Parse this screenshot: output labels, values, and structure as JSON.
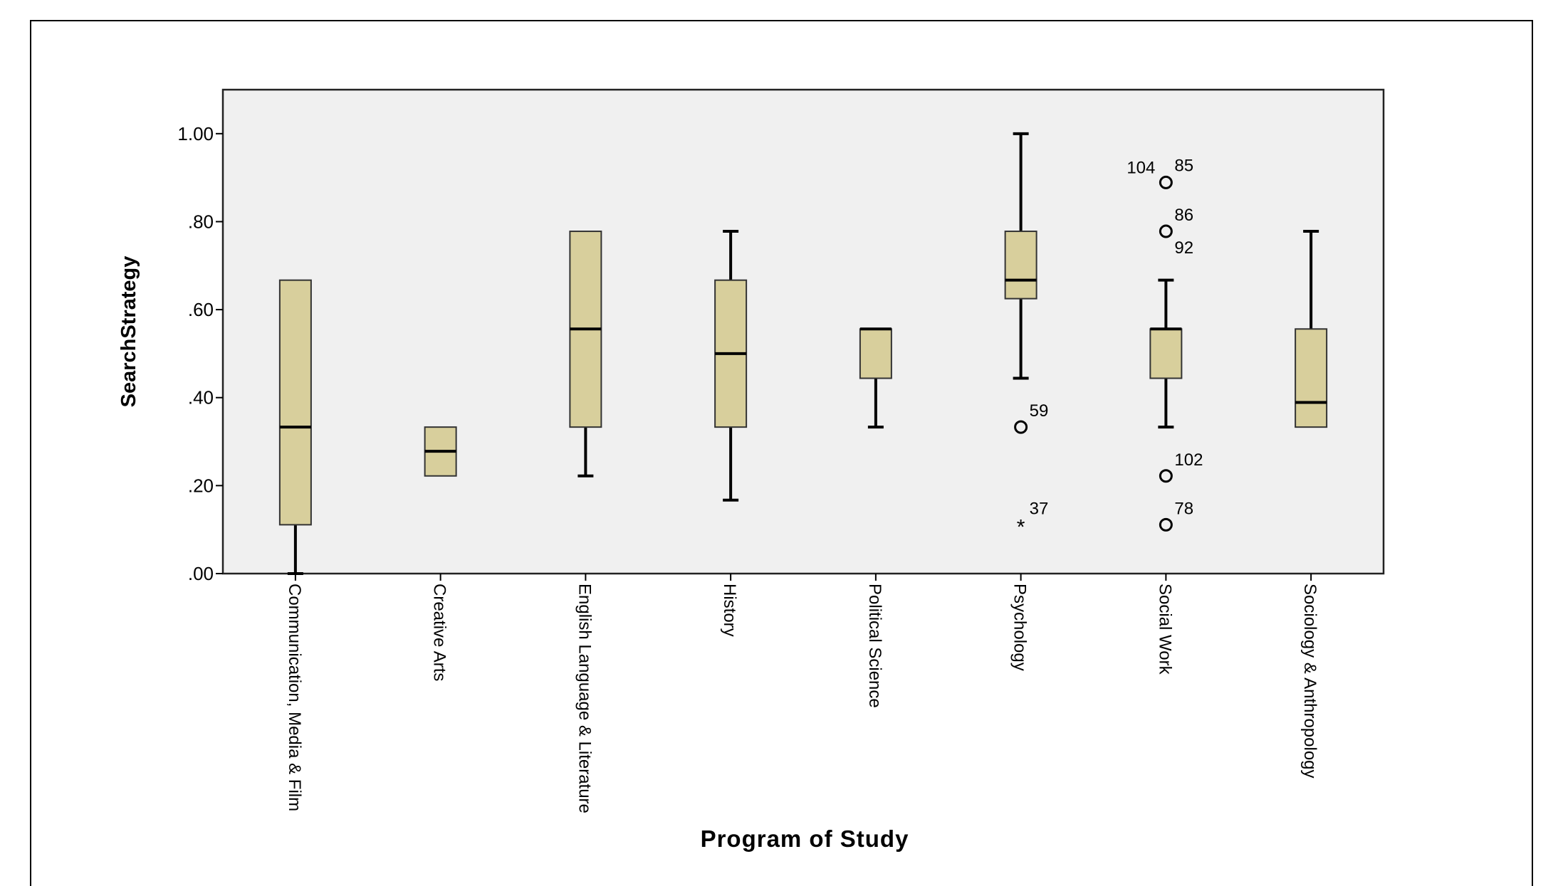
{
  "chart_data": {
    "type": "boxplot",
    "title": "",
    "xlabel": "Program of Study",
    "ylabel": "SearchStrategy",
    "ylim": [
      0,
      1.1
    ],
    "yticks": [
      0,
      0.2,
      0.4,
      0.6,
      0.8,
      1.0
    ],
    "ytick_labels": [
      ".00",
      ".20",
      ".40",
      ".60",
      ".80",
      "1.00"
    ],
    "grid": false,
    "colors": {
      "box_fill": "#d8cf9c",
      "plot_bg": "#f0f0f0",
      "line": "#000000"
    },
    "categories": [
      "Communication, Media & Film",
      "Creative Arts",
      "English Language & Literature",
      "History",
      "Political Science",
      "Psychology",
      "Social Work",
      "Sociology & Anthropology"
    ],
    "boxes": [
      {
        "whisker_low": 0.0,
        "q1": 0.111,
        "median": 0.333,
        "q3": 0.667,
        "whisker_high": 0.667
      },
      {
        "whisker_low": 0.222,
        "q1": 0.222,
        "median": 0.278,
        "q3": 0.333,
        "whisker_high": 0.333
      },
      {
        "whisker_low": 0.222,
        "q1": 0.333,
        "median": 0.556,
        "q3": 0.778,
        "whisker_high": 0.778
      },
      {
        "whisker_low": 0.167,
        "q1": 0.333,
        "median": 0.5,
        "q3": 0.667,
        "whisker_high": 0.778
      },
      {
        "whisker_low": 0.333,
        "q1": 0.444,
        "median": 0.556,
        "q3": 0.556,
        "whisker_high": 0.556
      },
      {
        "whisker_low": 0.444,
        "q1": 0.625,
        "median": 0.667,
        "q3": 0.778,
        "whisker_high": 1.0
      },
      {
        "whisker_low": 0.333,
        "q1": 0.444,
        "median": 0.556,
        "q3": 0.556,
        "whisker_high": 0.667
      },
      {
        "whisker_low": 0.333,
        "q1": 0.333,
        "median": 0.389,
        "q3": 0.556,
        "whisker_high": 0.778
      }
    ],
    "outliers": [
      {
        "category": 5,
        "value": 0.333,
        "marker": "circle",
        "labels": [
          "59"
        ]
      },
      {
        "category": 5,
        "value": 0.111,
        "marker": "star",
        "labels": [
          "37"
        ]
      },
      {
        "category": 6,
        "value": 0.889,
        "marker": "circle",
        "labels": [
          "104",
          "85"
        ]
      },
      {
        "category": 6,
        "value": 0.778,
        "marker": "circle",
        "labels": [
          "86",
          "92"
        ]
      },
      {
        "category": 6,
        "value": 0.222,
        "marker": "circle",
        "labels": [
          "102"
        ]
      },
      {
        "category": 6,
        "value": 0.111,
        "marker": "circle",
        "labels": [
          "78"
        ]
      }
    ]
  }
}
